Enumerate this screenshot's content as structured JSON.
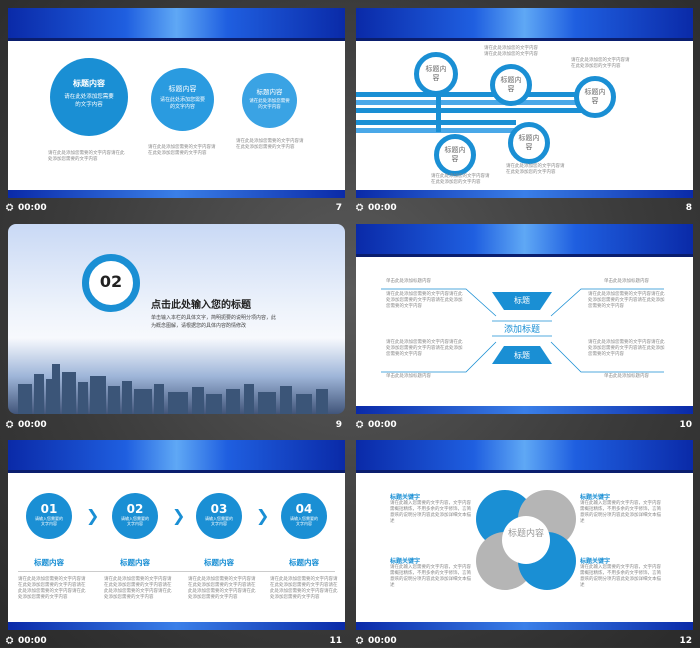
{
  "footer": {
    "time_label": "00:00",
    "clock_glyph": "⛭",
    "slide_numbers": [
      "7",
      "8",
      "9",
      "10",
      "11",
      "12"
    ]
  },
  "placeholder_text": "请在此处添加您需要的文字内容",
  "placeholder_short": "请在此处添加您的文字内容",
  "s7": {
    "bubbles": [
      {
        "title": "标题内容",
        "body": "请在此处添加您需要的文字内容"
      },
      {
        "title": "标题内容",
        "body": "请在此处添加您需要的文字内容"
      },
      {
        "title": "标题内容",
        "body": "请在此处添加您需要的文字内容"
      }
    ]
  },
  "s8": {
    "nodes": [
      "标题内容",
      "标题内容",
      "标题内容",
      "标题内容",
      "标题内容"
    ]
  },
  "s9": {
    "number": "02",
    "title": "点击此处输入您的标题",
    "body": "单击输入本栏的具体文字，简明扼要的说明分项内容，此为概念图解，请根据您的具体内容酌情修改"
  },
  "s10": {
    "top_label": "标题",
    "center_label": "添加标题",
    "bottom_label": "标题",
    "heading": "单击此处添加标题内容"
  },
  "s11": {
    "steps": [
      {
        "num": "01",
        "sub": "请输入您需要的文字内容",
        "title": "标题内容"
      },
      {
        "num": "02",
        "sub": "请输入您需要的文字内容",
        "title": "标题内容"
      },
      {
        "num": "03",
        "sub": "请输入您需要的文字内容",
        "title": "标题内容"
      },
      {
        "num": "04",
        "sub": "请输入您需要的文字内容",
        "title": "标题内容"
      }
    ]
  },
  "s12": {
    "center": "标题内容",
    "keyword": "标题关键字",
    "body": "请在此输入您需要的文字内容，文字内容需概括精炼，不用多余的文字修饰，言简意赅的说明分项内容此处添加详细文本描述"
  },
  "colors": {
    "accent": "#1a8fd4",
    "light": "#4aa8e8",
    "gray": "#b5b5b5",
    "darkblue": "#0a2aa8"
  }
}
